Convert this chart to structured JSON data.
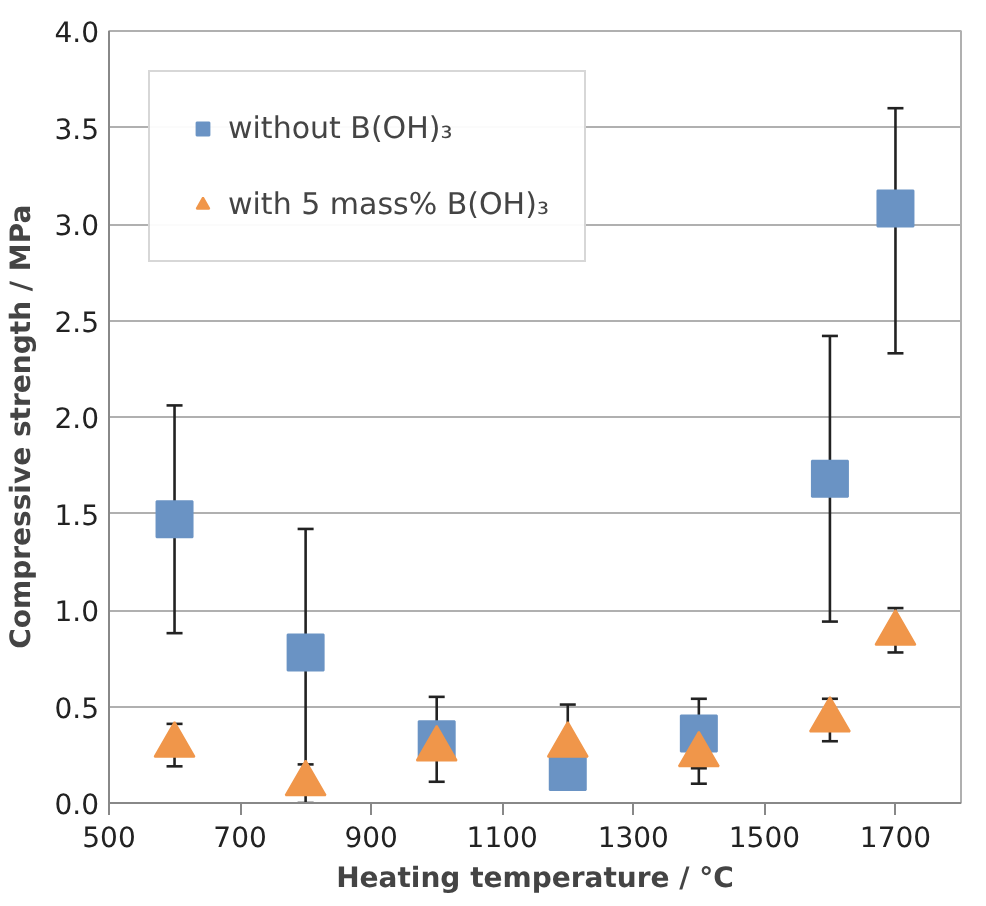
{
  "chart_data": {
    "type": "scatter",
    "xlabel": "Heating temperature / °C",
    "ylabel": "Compressive strength  /  MPa",
    "x": [
      600,
      800,
      1000,
      1200,
      1400,
      1600,
      1700
    ],
    "series": [
      {
        "name": "without B(OH)₃",
        "color": "#6a93c4",
        "marker": "square",
        "values": [
          1.47,
          0.78,
          0.33,
          0.16,
          0.36,
          1.68,
          3.08
        ],
        "errors": [
          0.59,
          0.64,
          0.22,
          null,
          0.18,
          0.74,
          [
            2.33,
            3.6
          ]
        ]
      },
      {
        "name": "with 5 mass% B(OH)₃",
        "color": "#f0964a",
        "marker": "triangle",
        "values": [
          0.3,
          0.1,
          0.28,
          0.3,
          0.25,
          0.43,
          0.88
        ],
        "errors": [
          0.11,
          0.1,
          null,
          0.21,
          0.15,
          0.11,
          [
            0.78,
            1.01
          ]
        ]
      }
    ],
    "xlim": [
      500,
      1800
    ],
    "xticks": [
      500,
      700,
      900,
      1100,
      1300,
      1500,
      1700
    ],
    "ylim": [
      0,
      4
    ],
    "yticks": [
      {
        "value": 0,
        "label": "0.0"
      },
      {
        "value": 0.5,
        "label": "0.5"
      },
      {
        "value": 1,
        "label": "1.0"
      },
      {
        "value": 1.5,
        "label": "1.5"
      },
      {
        "value": 2,
        "label": "2.0"
      },
      {
        "value": 2.5,
        "label": "2.5"
      },
      {
        "value": 3,
        "label": "3.0"
      },
      {
        "value": 3.5,
        "label": "3.5"
      },
      {
        "value": 4,
        "label": "4.0"
      }
    ],
    "grid": "y",
    "legend": "top left"
  }
}
